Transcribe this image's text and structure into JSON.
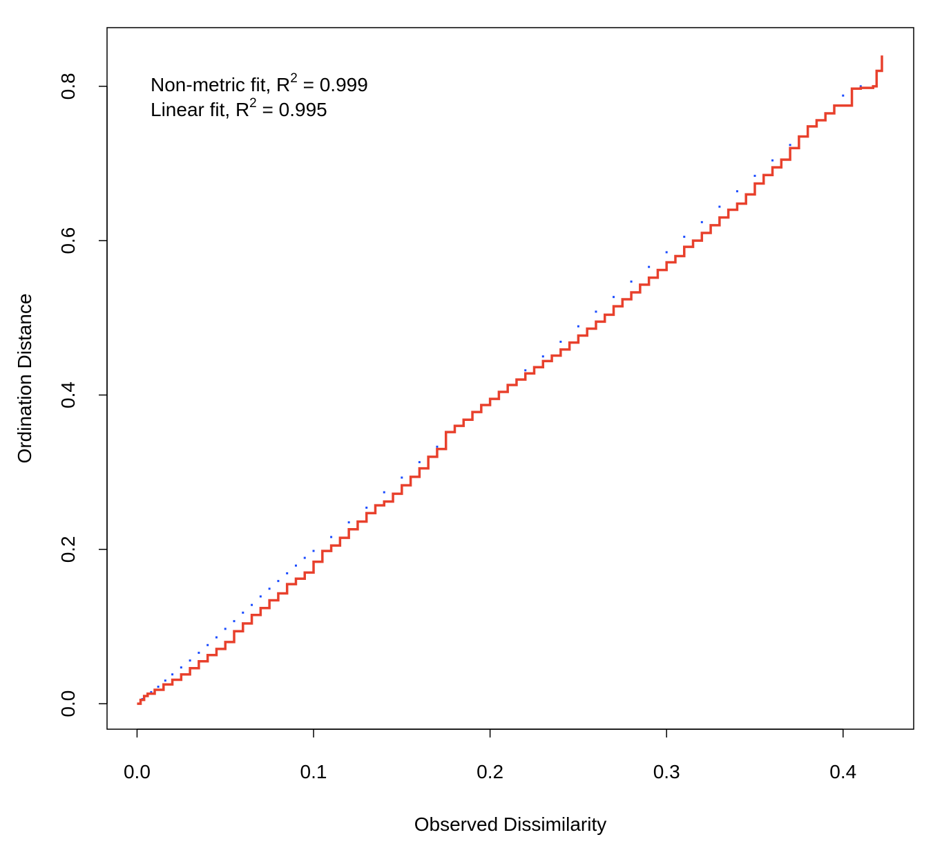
{
  "chart_data": {
    "type": "scatter",
    "title": "",
    "xlabel": "Observed Dissimilarity",
    "ylabel": "Ordination Distance",
    "xlim": [
      -0.017,
      0.44
    ],
    "ylim": [
      -0.033,
      0.876
    ],
    "x_ticks": [
      0.0,
      0.1,
      0.2,
      0.3,
      0.4
    ],
    "x_tick_labels": [
      "0.0",
      "0.1",
      "0.2",
      "0.3",
      "0.4"
    ],
    "y_ticks": [
      0.0,
      0.2,
      0.4,
      0.6,
      0.8
    ],
    "y_tick_labels": [
      "0.0",
      "0.2",
      "0.4",
      "0.6",
      "0.8"
    ],
    "grid": false,
    "annotations": [
      {
        "prefix": "Non-metric fit, R",
        "sup": "2",
        "suffix": " = 0.999"
      },
      {
        "prefix": "Linear fit, R",
        "sup": "2",
        "suffix": " = 0.995"
      }
    ],
    "series": [
      {
        "kind": "points",
        "color": "#1a4bff",
        "x": [
          0.003,
          0.008,
          0.012,
          0.016,
          0.02,
          0.025,
          0.03,
          0.035,
          0.04,
          0.045,
          0.05,
          0.055,
          0.06,
          0.065,
          0.07,
          0.075,
          0.08,
          0.085,
          0.09,
          0.095,
          0.1,
          0.11,
          0.12,
          0.13,
          0.14,
          0.15,
          0.16,
          0.17,
          0.18,
          0.19,
          0.2,
          0.21,
          0.22,
          0.23,
          0.24,
          0.25,
          0.26,
          0.27,
          0.28,
          0.29,
          0.3,
          0.31,
          0.32,
          0.33,
          0.34,
          0.35,
          0.36,
          0.37,
          0.38,
          0.39,
          0.4,
          0.41,
          0.42
        ],
        "y": [
          0.006,
          0.015,
          0.022,
          0.03,
          0.038,
          0.047,
          0.056,
          0.066,
          0.076,
          0.086,
          0.097,
          0.107,
          0.118,
          0.128,
          0.139,
          0.149,
          0.159,
          0.169,
          0.179,
          0.189,
          0.198,
          0.216,
          0.235,
          0.254,
          0.274,
          0.293,
          0.313,
          0.333,
          0.355,
          0.375,
          0.394,
          0.413,
          0.432,
          0.45,
          0.469,
          0.489,
          0.508,
          0.527,
          0.547,
          0.566,
          0.585,
          0.605,
          0.624,
          0.644,
          0.664,
          0.684,
          0.704,
          0.724,
          0.745,
          0.765,
          0.788,
          0.8,
          0.82
        ]
      },
      {
        "kind": "step",
        "color": "#e8402c",
        "x": [
          0.0,
          0.002,
          0.004,
          0.006,
          0.01,
          0.015,
          0.02,
          0.025,
          0.03,
          0.035,
          0.04,
          0.045,
          0.05,
          0.055,
          0.06,
          0.065,
          0.07,
          0.075,
          0.08,
          0.085,
          0.09,
          0.095,
          0.1,
          0.105,
          0.11,
          0.115,
          0.12,
          0.125,
          0.13,
          0.135,
          0.14,
          0.145,
          0.15,
          0.155,
          0.16,
          0.165,
          0.17,
          0.175,
          0.18,
          0.185,
          0.19,
          0.195,
          0.2,
          0.205,
          0.21,
          0.215,
          0.22,
          0.225,
          0.23,
          0.235,
          0.24,
          0.245,
          0.25,
          0.255,
          0.26,
          0.265,
          0.27,
          0.275,
          0.28,
          0.285,
          0.29,
          0.295,
          0.3,
          0.305,
          0.31,
          0.315,
          0.32,
          0.325,
          0.33,
          0.335,
          0.34,
          0.345,
          0.35,
          0.355,
          0.36,
          0.365,
          0.37,
          0.375,
          0.38,
          0.385,
          0.39,
          0.395,
          0.405,
          0.41,
          0.417,
          0.419,
          0.422
        ],
        "y": [
          0.0,
          0.005,
          0.01,
          0.013,
          0.018,
          0.025,
          0.031,
          0.038,
          0.046,
          0.055,
          0.063,
          0.071,
          0.08,
          0.094,
          0.104,
          0.115,
          0.124,
          0.134,
          0.143,
          0.155,
          0.162,
          0.17,
          0.184,
          0.198,
          0.205,
          0.215,
          0.226,
          0.236,
          0.247,
          0.257,
          0.262,
          0.272,
          0.283,
          0.294,
          0.305,
          0.32,
          0.33,
          0.352,
          0.36,
          0.368,
          0.378,
          0.387,
          0.395,
          0.404,
          0.413,
          0.42,
          0.428,
          0.436,
          0.444,
          0.451,
          0.459,
          0.468,
          0.477,
          0.486,
          0.495,
          0.504,
          0.515,
          0.524,
          0.533,
          0.543,
          0.552,
          0.562,
          0.572,
          0.58,
          0.592,
          0.6,
          0.61,
          0.62,
          0.63,
          0.64,
          0.648,
          0.66,
          0.674,
          0.685,
          0.695,
          0.705,
          0.72,
          0.735,
          0.748,
          0.756,
          0.765,
          0.775,
          0.797,
          0.798,
          0.8,
          0.82,
          0.84
        ]
      }
    ]
  }
}
